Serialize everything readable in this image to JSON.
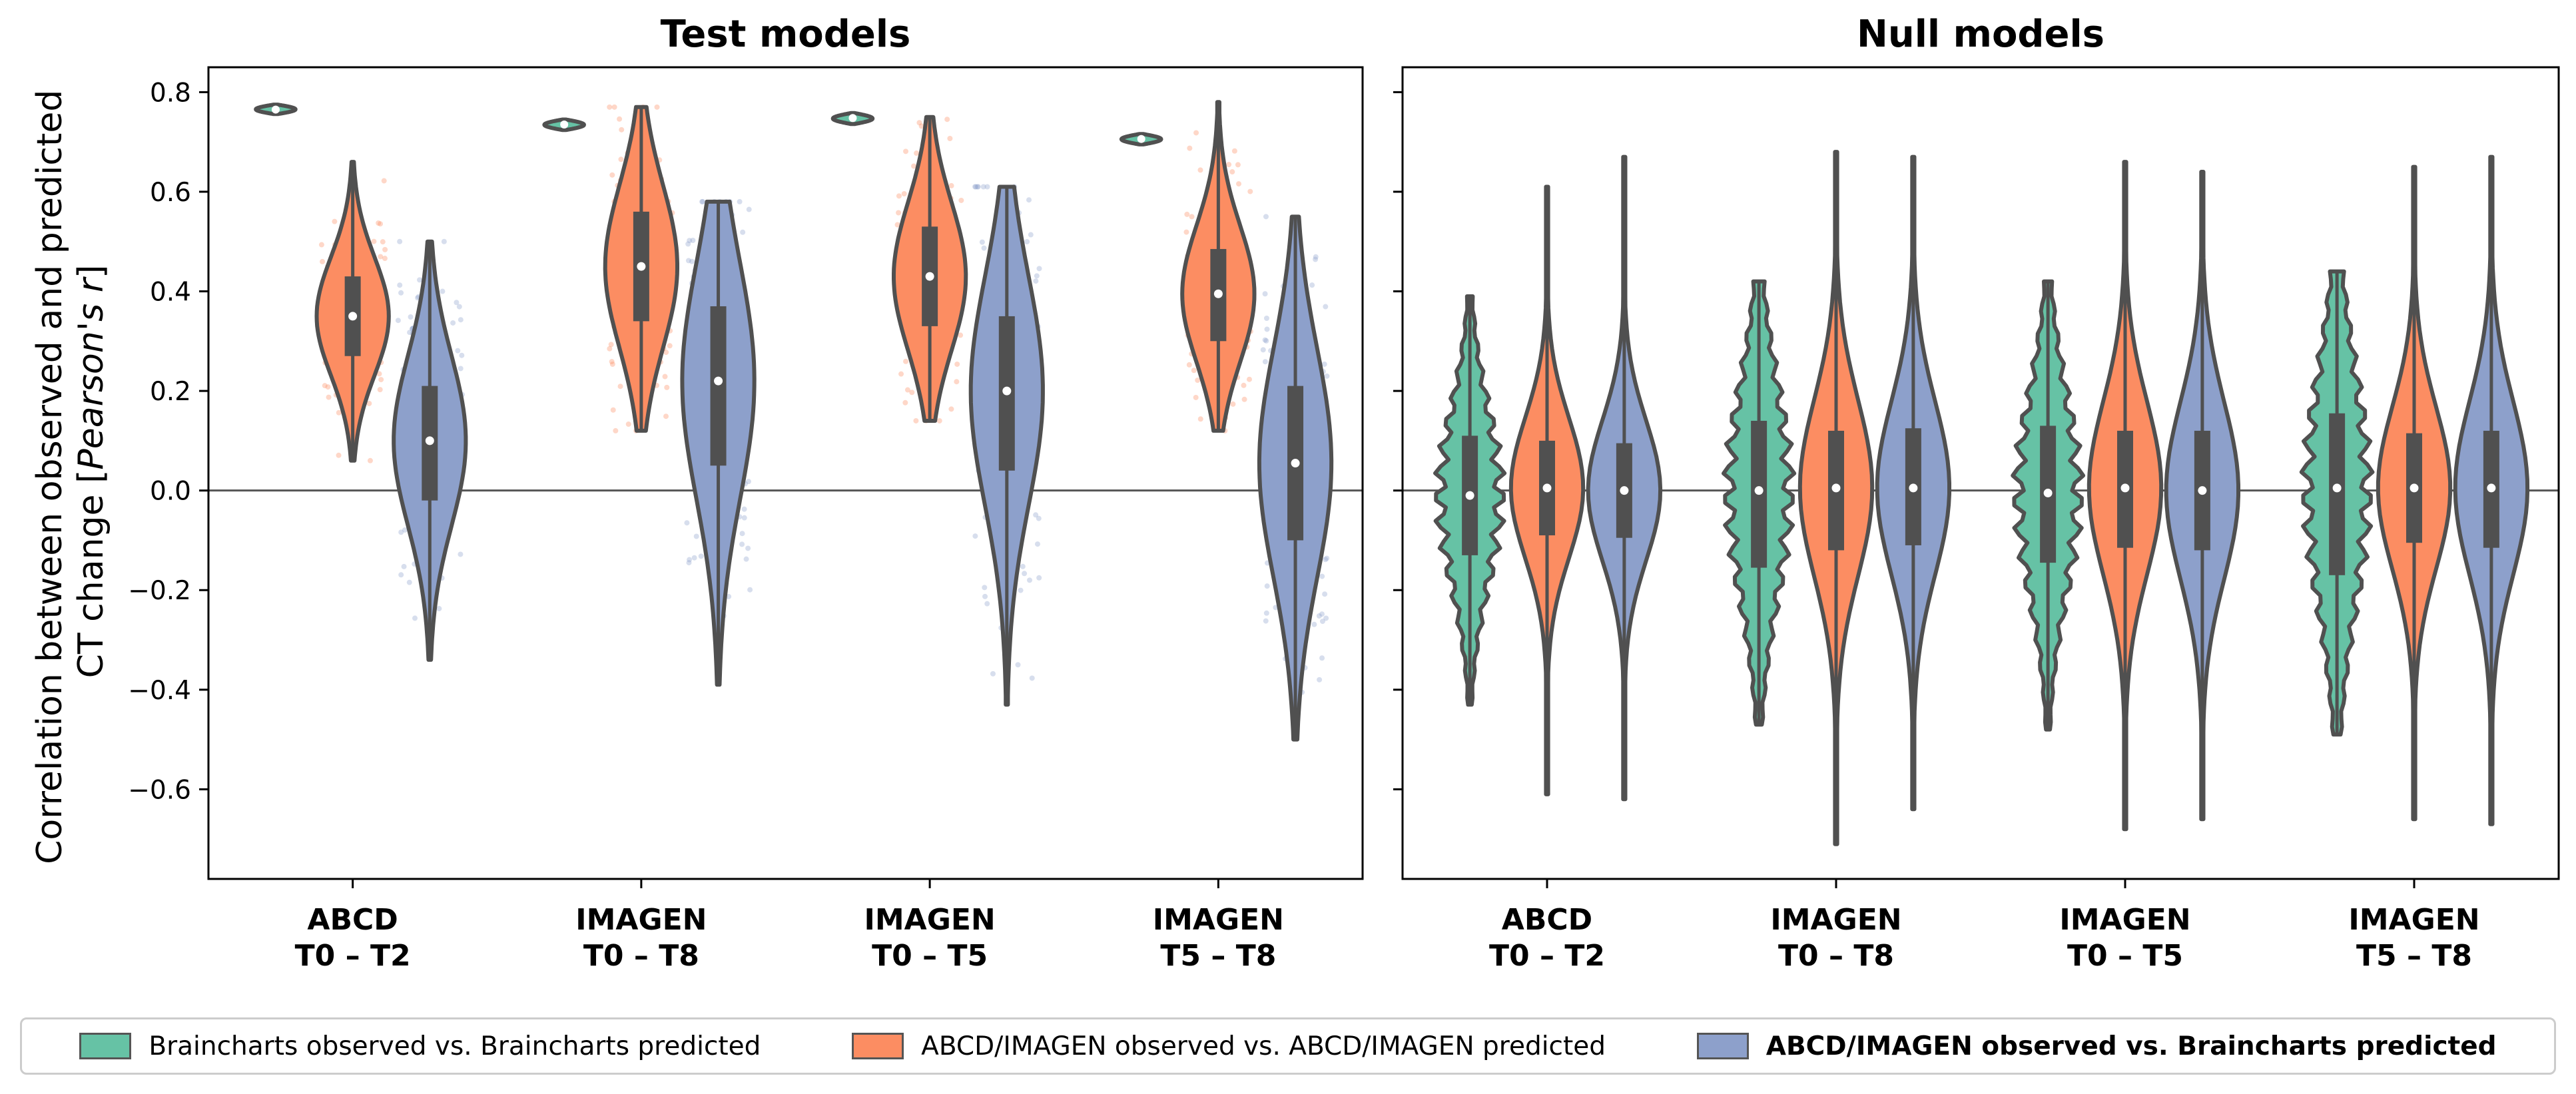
{
  "colors": {
    "green": "#66c2a5",
    "orange": "#fc8d62",
    "blue": "#8da0cb",
    "outline": "#505050",
    "axis": "#000000",
    "zero_line": "#555555"
  },
  "chart_data": [
    {
      "type": "violin",
      "title": "Test models",
      "ylabel_line1": "Correlation between observed and predicted",
      "ylabel_line2_prefix": "CT change [",
      "ylabel_line2_italic": "Pearson's r",
      "ylabel_line2_suffix": "]",
      "ylim": [
        -0.78,
        0.85
      ],
      "yticks": [
        -0.6,
        -0.4,
        -0.2,
        0.0,
        0.2,
        0.4,
        0.6,
        0.8
      ],
      "ytick_labels": [
        "−0.6",
        "−0.4",
        "−0.2",
        "0.0",
        "0.2",
        "0.4",
        "0.6",
        "0.8"
      ],
      "zero_line": 0.0,
      "categories": [
        {
          "line1": "ABCD",
          "line2": "T0 – T2"
        },
        {
          "line1": "IMAGEN",
          "line2": "T0 – T8"
        },
        {
          "line1": "IMAGEN",
          "line2": "T0 – T5"
        },
        {
          "line1": "IMAGEN",
          "line2": "T5 – T8"
        }
      ],
      "series": [
        {
          "name": "Brainchart observed vs. Braincharts predicted",
          "median": [
            0.765,
            0.735,
            0.748,
            0.706
          ],
          "q1": [
            0.762,
            0.731,
            0.744,
            0.702
          ],
          "q3": [
            0.768,
            0.739,
            0.752,
            0.71
          ],
          "min": [
            0.756,
            0.724,
            0.736,
            0.695
          ],
          "max": [
            0.775,
            0.745,
            0.758,
            0.716
          ]
        },
        {
          "name": "ABCD/IMAGEN observed vs. ABCD/IMAGEN predicted",
          "median": [
            0.35,
            0.45,
            0.43,
            0.395
          ],
          "q1": [
            0.27,
            0.34,
            0.33,
            0.3
          ],
          "q3": [
            0.43,
            0.56,
            0.53,
            0.485
          ],
          "min": [
            0.06,
            0.12,
            0.14,
            0.12
          ],
          "max": [
            0.66,
            0.77,
            0.75,
            0.78
          ]
        },
        {
          "name": "ABCD/IMAGEN observed vs. Braincharts predicted",
          "median": [
            0.1,
            0.22,
            0.2,
            0.055
          ],
          "q1": [
            -0.02,
            0.05,
            0.04,
            -0.1
          ],
          "q3": [
            0.21,
            0.37,
            0.35,
            0.21
          ],
          "min": [
            -0.34,
            -0.39,
            -0.43,
            -0.5
          ],
          "max": [
            0.5,
            0.58,
            0.61,
            0.55
          ]
        }
      ],
      "show_points": true
    },
    {
      "type": "violin",
      "title": "Null models",
      "ylim": [
        -0.78,
        0.85
      ],
      "zero_line": 0.0,
      "categories": [
        {
          "line1": "ABCD",
          "line2": "T0 – T2"
        },
        {
          "line1": "IMAGEN",
          "line2": "T0 – T8"
        },
        {
          "line1": "IMAGEN",
          "line2": "T0 – T5"
        },
        {
          "line1": "IMAGEN",
          "line2": "T5 – T8"
        }
      ],
      "series": [
        {
          "name": "Brainchart observed vs. Braincharts predicted",
          "median": [
            -0.01,
            0.0,
            -0.005,
            0.005
          ],
          "q1": [
            -0.13,
            -0.155,
            -0.145,
            -0.17
          ],
          "q3": [
            0.11,
            0.14,
            0.13,
            0.155
          ],
          "min": [
            -0.43,
            -0.47,
            -0.48,
            -0.49
          ],
          "max": [
            0.39,
            0.42,
            0.42,
            0.44
          ]
        },
        {
          "name": "ABCD/IMAGEN observed vs. ABCD/IMAGEN predicted",
          "median": [
            0.005,
            0.005,
            0.005,
            0.005
          ],
          "q1": [
            -0.09,
            -0.12,
            -0.115,
            -0.105
          ],
          "q3": [
            0.1,
            0.12,
            0.12,
            0.115
          ],
          "min": [
            -0.61,
            -0.71,
            -0.68,
            -0.66
          ],
          "max": [
            0.61,
            0.68,
            0.66,
            0.65
          ]
        },
        {
          "name": "ABCD/IMAGEN observed vs. Braincharts predicted",
          "median": [
            0.0,
            0.005,
            0.0,
            0.005
          ],
          "q1": [
            -0.095,
            -0.11,
            -0.12,
            -0.115
          ],
          "q3": [
            0.095,
            0.125,
            0.12,
            0.12
          ],
          "min": [
            -0.62,
            -0.64,
            -0.66,
            -0.67
          ],
          "max": [
            0.67,
            0.67,
            0.64,
            0.67
          ]
        }
      ],
      "show_points": false
    }
  ],
  "legend": [
    {
      "label": "Braincharts observed vs. Braincharts predicted",
      "color": "#66c2a5",
      "bold": false
    },
    {
      "label": "ABCD/IMAGEN observed vs. ABCD/IMAGEN predicted",
      "color": "#fc8d62",
      "bold": false
    },
    {
      "label": "ABCD/IMAGEN observed vs.  Braincharts predicted",
      "color": "#8da0cb",
      "bold": true
    }
  ]
}
